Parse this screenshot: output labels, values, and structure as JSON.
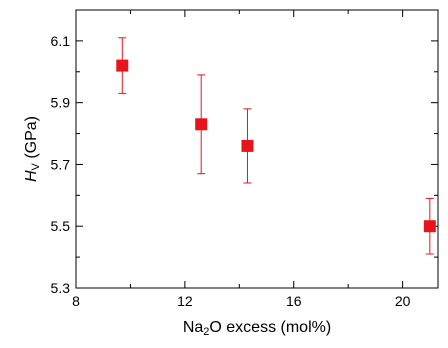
{
  "chart_data": {
    "type": "scatter",
    "title": "",
    "xlabel": {
      "parts": [
        {
          "text": "Na",
          "style": "normal"
        },
        {
          "text": "2",
          "style": "sub"
        },
        {
          "text": "O excess (mol%)",
          "style": "normal"
        }
      ]
    },
    "ylabel": {
      "parts": [
        {
          "text": "H",
          "style": "italic"
        },
        {
          "text": "V",
          "style": "sub"
        },
        {
          "text": " (GPa)",
          "style": "normal"
        }
      ]
    },
    "xlim": [
      8,
      21.3
    ],
    "ylim": [
      5.3,
      6.2
    ],
    "xticks": [
      8,
      12,
      16,
      20
    ],
    "xtick_labels": [
      "8",
      "12",
      "16",
      "20"
    ],
    "yticks": [
      5.3,
      5.5,
      5.7,
      5.9,
      6.1
    ],
    "ytick_labels": [
      "5.3",
      "5.5",
      "5.7",
      "5.9",
      "6.1"
    ],
    "grid": false,
    "marker_color": "#e8141b",
    "series": [
      {
        "marker": "square",
        "points": [
          {
            "x": 9.7,
            "y": 6.02,
            "ymin": 5.93,
            "ymax": 6.11
          },
          {
            "x": 12.6,
            "y": 5.83,
            "ymin": 5.67,
            "ymax": 5.99
          },
          {
            "x": 14.3,
            "y": 5.76,
            "ymin": 5.64,
            "ymax": 5.88
          },
          {
            "x": 21.0,
            "y": 5.5,
            "ymin": 5.41,
            "ymax": 5.59
          }
        ]
      }
    ]
  }
}
